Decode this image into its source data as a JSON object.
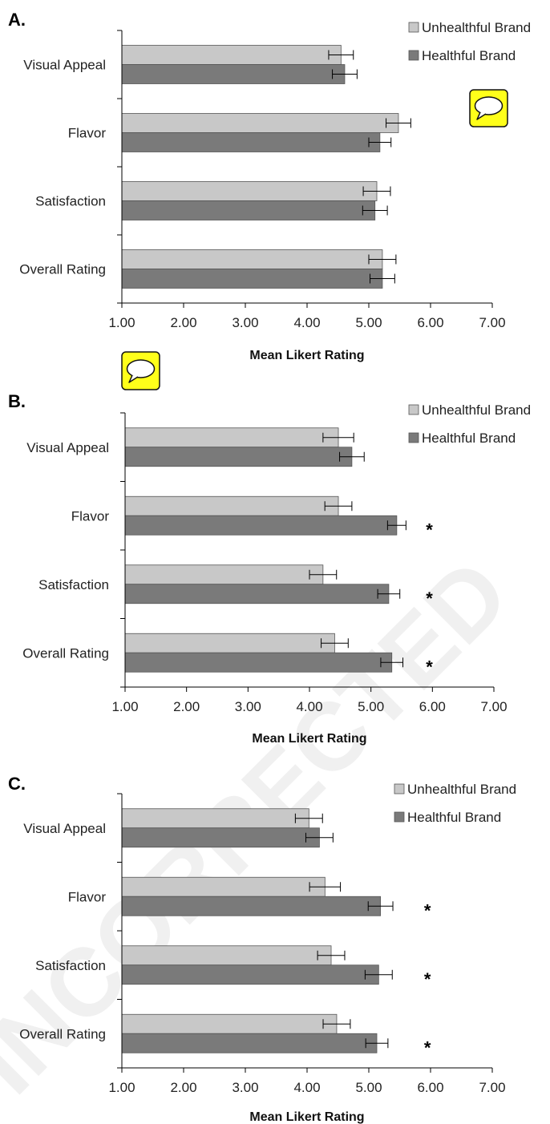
{
  "watermark_text": "INCORRECTED",
  "colors": {
    "unhealthful": "#c8c8c8",
    "healthful": "#7a7a7a",
    "axis": "#000000",
    "comment_bg": "#ffff1a"
  },
  "icons": [
    "comment-icon"
  ],
  "chart_data": [
    {
      "type": "bar",
      "orientation": "horizontal",
      "panel_label": "A.",
      "xlabel": "Mean Likert Rating",
      "xlim": [
        1.0,
        7.0
      ],
      "xticks": [
        "1.00",
        "2.00",
        "3.00",
        "4.00",
        "5.00",
        "6.00",
        "7.00"
      ],
      "categories": [
        "Visual Appeal",
        "Flavor",
        "Satisfaction",
        "Overall Rating"
      ],
      "legend": {
        "position": "top-right",
        "entries": [
          "Unhealthful Brand",
          "Healthful Brand"
        ]
      },
      "series": [
        {
          "name": "Unhealthful Brand",
          "values": [
            4.55,
            5.48,
            5.13,
            5.22
          ],
          "errors": [
            0.2,
            0.2,
            0.22,
            0.22
          ]
        },
        {
          "name": "Healthful Brand",
          "values": [
            4.61,
            5.18,
            5.1,
            5.22
          ],
          "errors": [
            0.2,
            0.18,
            0.2,
            0.2
          ]
        }
      ],
      "significance": [
        "",
        "",
        "",
        ""
      ],
      "comment_icon": true
    },
    {
      "type": "bar",
      "orientation": "horizontal",
      "panel_label": "B.",
      "xlabel": "Mean Likert Rating",
      "xlim": [
        1.0,
        7.0
      ],
      "xticks": [
        "1.00",
        "2.00",
        "3.00",
        "4.00",
        "5.00",
        "6.00",
        "7.00"
      ],
      "categories": [
        "Visual Appeal",
        "Flavor",
        "Satisfaction",
        "Overall Rating"
      ],
      "legend": {
        "position": "top-right",
        "entries": [
          "Unhealthful Brand",
          "Healthful Brand"
        ]
      },
      "series": [
        {
          "name": "Unhealthful Brand",
          "values": [
            4.47,
            4.47,
            4.22,
            4.41
          ],
          "errors": [
            0.25,
            0.22,
            0.22,
            0.22
          ]
        },
        {
          "name": "Healthful Brand",
          "values": [
            4.69,
            5.42,
            5.29,
            5.34
          ],
          "errors": [
            0.2,
            0.15,
            0.18,
            0.18
          ]
        }
      ],
      "significance": [
        "",
        "*",
        "*",
        "*"
      ],
      "comment_icon": false
    },
    {
      "type": "bar",
      "orientation": "horizontal",
      "panel_label": "C.",
      "xlabel": "Mean Likert Rating",
      "xlim": [
        1.0,
        7.0
      ],
      "xticks": [
        "1.00",
        "2.00",
        "3.00",
        "4.00",
        "5.00",
        "6.00",
        "7.00"
      ],
      "categories": [
        "Visual Appeal",
        "Flavor",
        "Satisfaction",
        "Overall Rating"
      ],
      "legend": {
        "position": "top-right",
        "entries": [
          "Unhealthful Brand",
          "Healthful Brand"
        ]
      },
      "series": [
        {
          "name": "Unhealthful Brand",
          "values": [
            4.03,
            4.29,
            4.39,
            4.48
          ],
          "errors": [
            0.22,
            0.25,
            0.22,
            0.22
          ]
        },
        {
          "name": "Healthful Brand",
          "values": [
            4.2,
            5.19,
            5.16,
            5.13
          ],
          "errors": [
            0.22,
            0.2,
            0.22,
            0.18
          ]
        }
      ],
      "significance": [
        "",
        "*",
        "*",
        "*"
      ],
      "comment_icon": false
    }
  ]
}
